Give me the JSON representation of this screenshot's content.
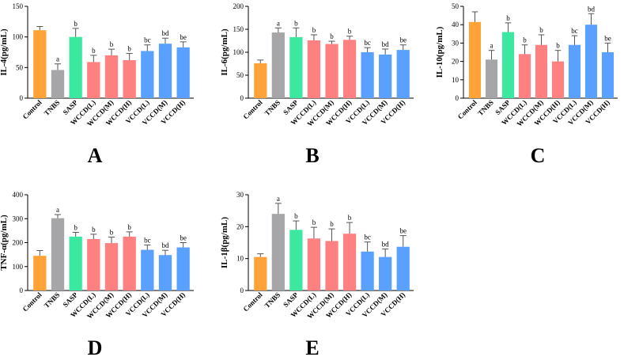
{
  "colors": {
    "control": "#FFA338",
    "tnbs": "#A6A6A8",
    "sasp": "#3CE8A0",
    "wccd": "#FF8080",
    "vccd": "#5AA0FF"
  },
  "categories": [
    "Control",
    "TNBS",
    "SASP",
    "WCCD(L)",
    "WCCD(M)",
    "WCCD(H)",
    "VCCD(L)",
    "VCCD(M)",
    "VCCD(H)"
  ],
  "chart_data": [
    {
      "type": "bar",
      "panel": "A",
      "ylabel": "IL-4(pg/mL)",
      "ylim": [
        0,
        150
      ],
      "yticks": [
        0,
        50,
        100,
        150
      ],
      "categories": [
        "Control",
        "TNBS",
        "SASP",
        "WCCD(L)",
        "WCCD(M)",
        "WCCD(H)",
        "VCCD(L)",
        "VCCD(M)",
        "VCCD(H)"
      ],
      "values": [
        111,
        46,
        100,
        59,
        70,
        62,
        77,
        89,
        83
      ],
      "errors": [
        6,
        10,
        14,
        11,
        10,
        11,
        10,
        9,
        9
      ],
      "labels": [
        "",
        "a",
        "b",
        "b",
        "b",
        "b",
        "bc",
        "bd",
        "be"
      ]
    },
    {
      "type": "bar",
      "panel": "B",
      "ylabel": "IL-6(pg/mL)",
      "ylim": [
        0,
        200
      ],
      "yticks": [
        0,
        50,
        100,
        150,
        200
      ],
      "categories": [
        "Control",
        "TNBS",
        "SASP",
        "WCCD(L)",
        "WCCD(M)",
        "WCCD(H)",
        "VCCD(L)",
        "VCCD(M)",
        "VCCD(H)"
      ],
      "values": [
        76,
        143,
        133,
        126,
        118,
        127,
        100,
        95,
        105
      ],
      "errors": [
        7,
        10,
        20,
        12,
        6,
        8,
        10,
        12,
        11
      ],
      "labels": [
        "",
        "a",
        "b",
        "b",
        "b",
        "b",
        "bc",
        "bd",
        "be"
      ]
    },
    {
      "type": "bar",
      "panel": "C",
      "ylabel": "IL-10(pg/mL)",
      "ylim": [
        0,
        50
      ],
      "yticks": [
        0,
        10,
        20,
        30,
        40,
        50
      ],
      "categories": [
        "Control",
        "TNBS",
        "SASP",
        "WCCD(L)",
        "WCCD(M)",
        "WCCD(H)",
        "VCCD(L)",
        "VCCD(M)",
        "VCCD(H)"
      ],
      "values": [
        41.5,
        21,
        36,
        24,
        29,
        20,
        29,
        40,
        25
      ],
      "errors": [
        5.5,
        5,
        5,
        5,
        5.5,
        6,
        5,
        6,
        5
      ],
      "labels": [
        "",
        "a",
        "b",
        "b",
        "b",
        "b",
        "bc",
        "bd",
        "be"
      ]
    },
    {
      "type": "bar",
      "panel": "D",
      "ylabel": "TNF-α(pg/mL)",
      "ylim": [
        0,
        400
      ],
      "yticks": [
        0,
        100,
        200,
        300,
        400
      ],
      "categories": [
        "Control",
        "TNBS",
        "SASP",
        "WCCD(L)",
        "WCCD(M)",
        "WCCD(H)",
        "VCCD(L)",
        "VCCD(M)",
        "VCCD(H)"
      ],
      "values": [
        145,
        302,
        225,
        215,
        198,
        225,
        170,
        148,
        180
      ],
      "errors": [
        22,
        15,
        18,
        20,
        25,
        20,
        20,
        20,
        20
      ],
      "labels": [
        "",
        "a",
        "b",
        "b",
        "b",
        "b",
        "bc",
        "bd",
        "be"
      ]
    },
    {
      "type": "bar",
      "panel": "E",
      "ylabel": "IL-1β(pg/mL)",
      "ylim": [
        0,
        30
      ],
      "yticks": [
        0,
        10,
        20,
        30
      ],
      "categories": [
        "Control",
        "TNBS",
        "SASP",
        "WCCD(L)",
        "WCCD(M)",
        "WCCD(H)",
        "VCCD(L)",
        "VCCD(M)",
        "VCCD(H)"
      ],
      "values": [
        10.5,
        24,
        19,
        16.3,
        15.5,
        17.8,
        12.2,
        10.5,
        13.7
      ],
      "errors": [
        1,
        3.3,
        2.8,
        3.5,
        3.8,
        3.5,
        3,
        2.5,
        3.5
      ],
      "labels": [
        "",
        "a",
        "b",
        "b",
        "b",
        "b",
        "bc",
        "bd",
        "be"
      ]
    }
  ]
}
